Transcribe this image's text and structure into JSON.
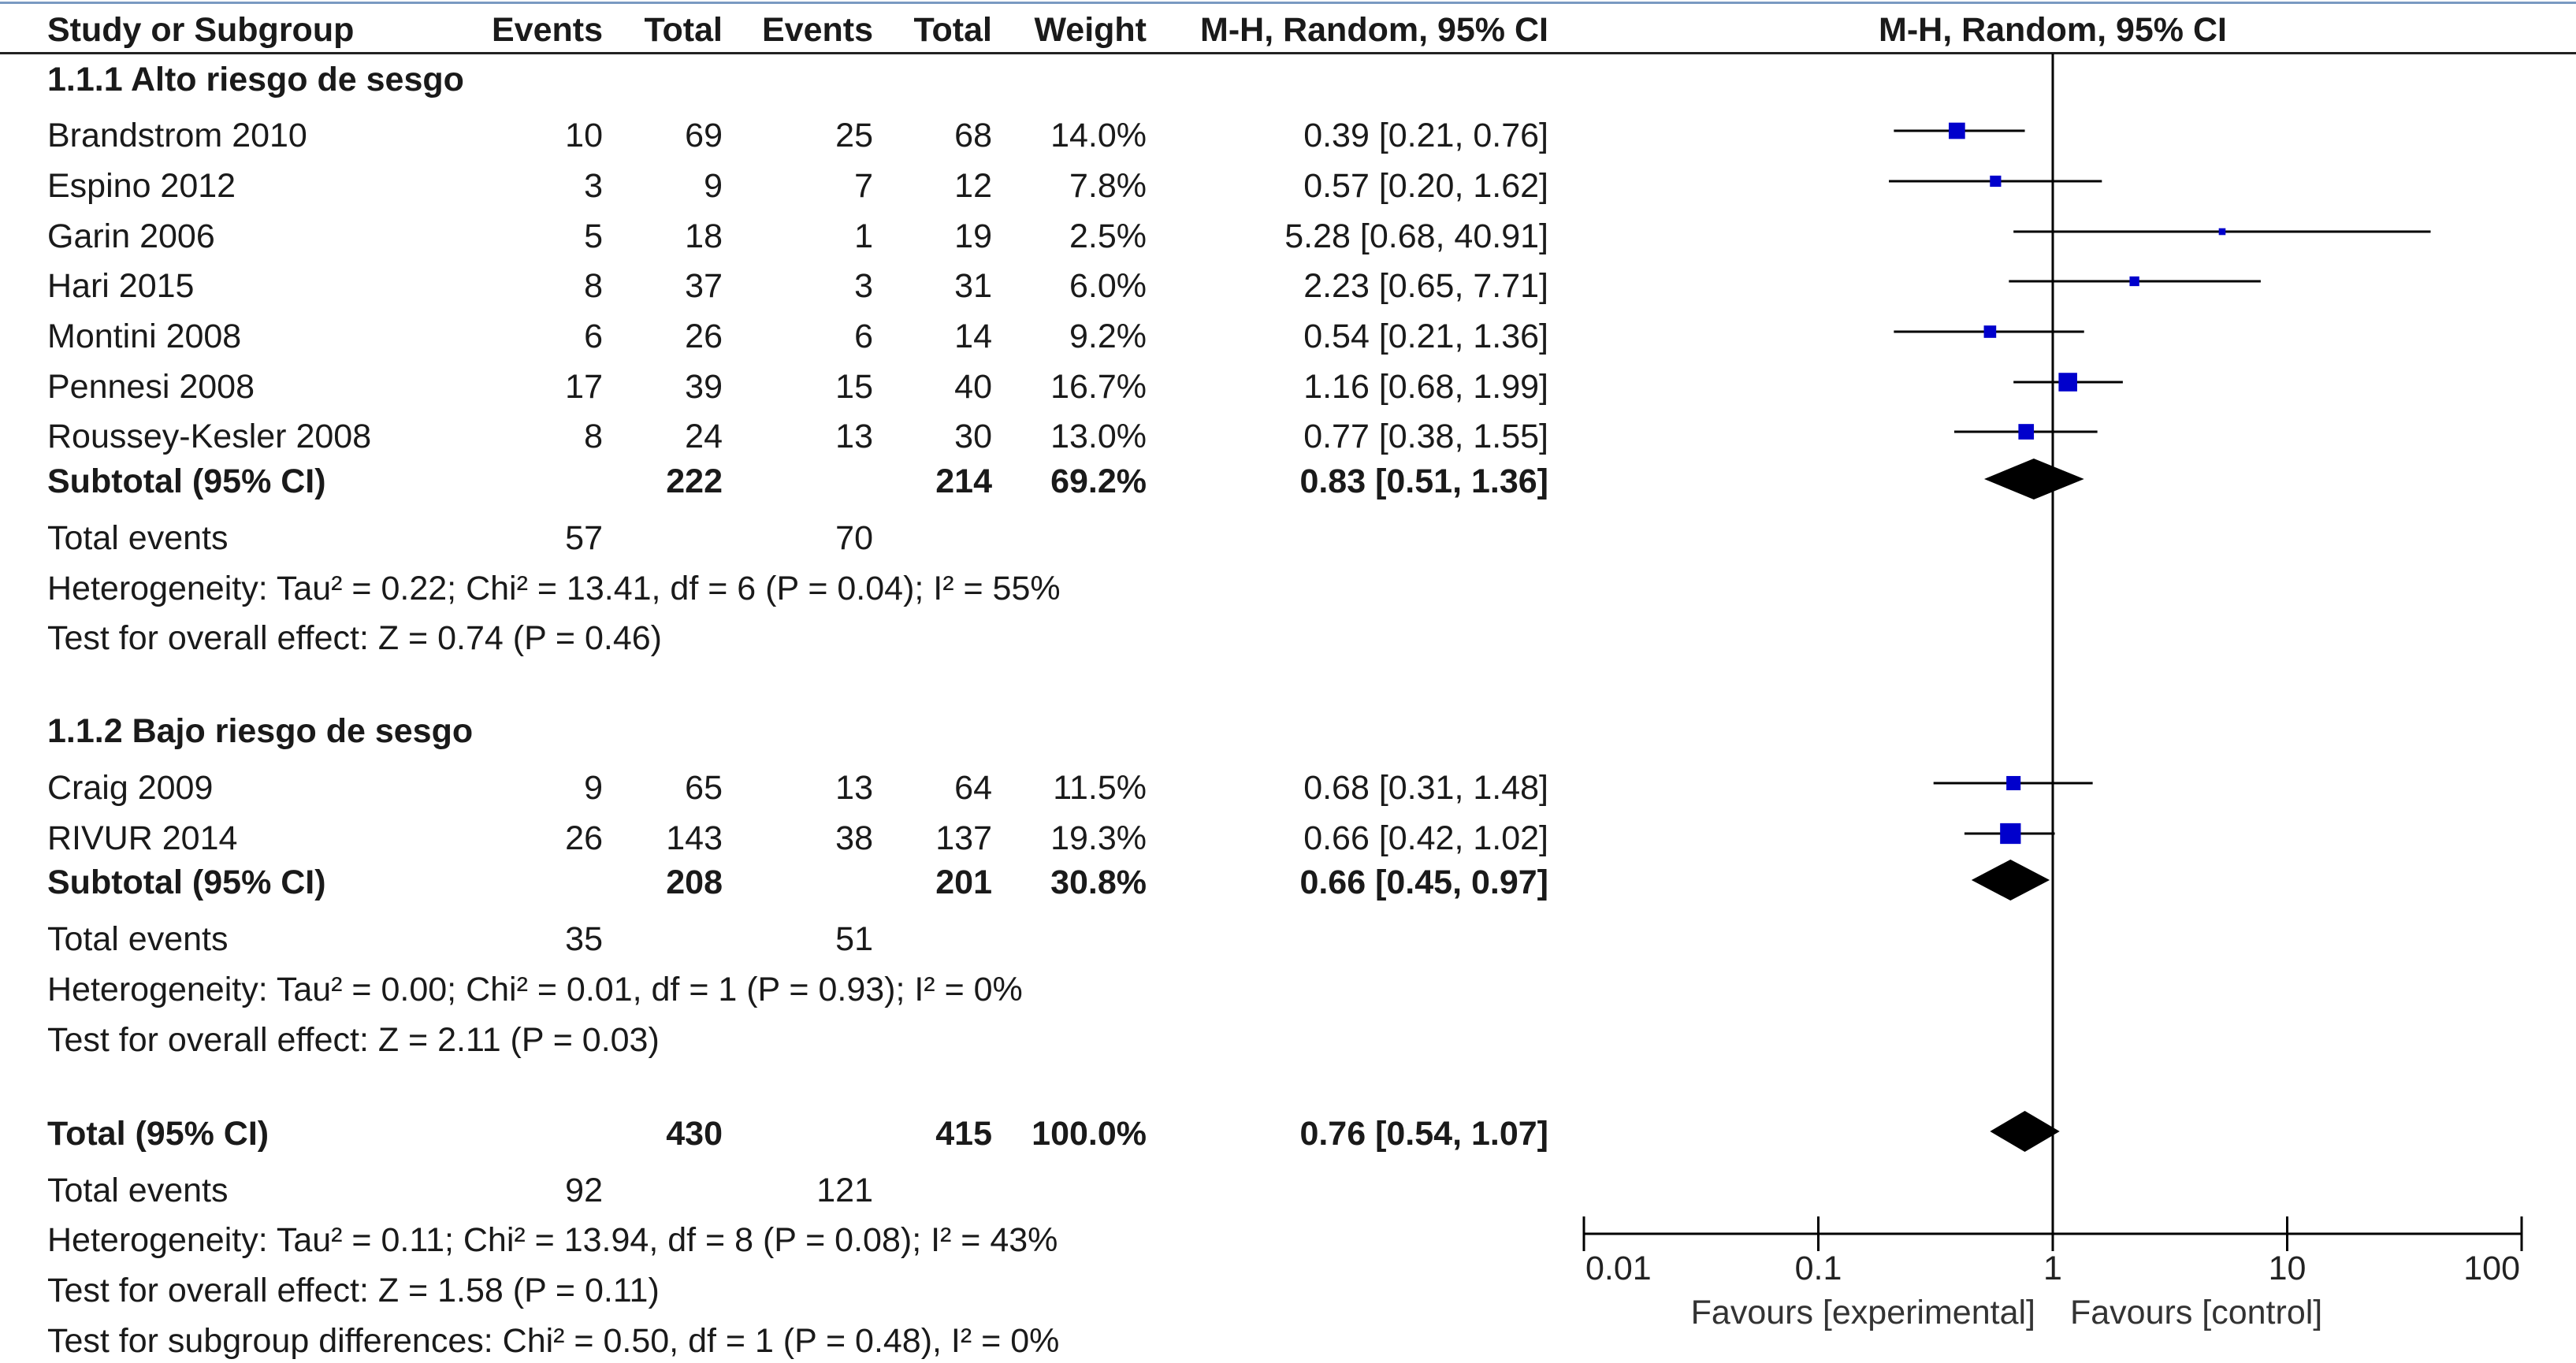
{
  "chart_data": {
    "type": "forest",
    "header": {
      "study": "Study or Subgroup",
      "exp_events": "Events",
      "exp_total": "Total",
      "ctl_events": "Events",
      "ctl_total": "Total",
      "weight": "Weight",
      "effect": "M-H, Random, 95% CI",
      "plot_title": "M-H, Random, 95% CI"
    },
    "groups": [
      {
        "title": "1.1.1 Alto riesgo de sesgo",
        "studies": [
          {
            "name": "Brandstrom 2010",
            "e1": "10",
            "n1": "69",
            "e2": "25",
            "n2": "68",
            "weight": "14.0%",
            "ci_text": "0.39 [0.21, 0.76]",
            "or": 0.39,
            "lo": 0.21,
            "hi": 0.76,
            "w": 14.0
          },
          {
            "name": "Espino 2012",
            "e1": "3",
            "n1": "9",
            "e2": "7",
            "n2": "12",
            "weight": "7.8%",
            "ci_text": "0.57 [0.20, 1.62]",
            "or": 0.57,
            "lo": 0.2,
            "hi": 1.62,
            "w": 7.8
          },
          {
            "name": "Garin 2006",
            "e1": "5",
            "n1": "18",
            "e2": "1",
            "n2": "19",
            "weight": "2.5%",
            "ci_text": "5.28 [0.68, 40.91]",
            "or": 5.28,
            "lo": 0.68,
            "hi": 40.91,
            "w": 2.5
          },
          {
            "name": "Hari 2015",
            "e1": "8",
            "n1": "37",
            "e2": "3",
            "n2": "31",
            "weight": "6.0%",
            "ci_text": "2.23 [0.65, 7.71]",
            "or": 2.23,
            "lo": 0.65,
            "hi": 7.71,
            "w": 6.0
          },
          {
            "name": "Montini 2008",
            "e1": "6",
            "n1": "26",
            "e2": "6",
            "n2": "14",
            "weight": "9.2%",
            "ci_text": "0.54 [0.21, 1.36]",
            "or": 0.54,
            "lo": 0.21,
            "hi": 1.36,
            "w": 9.2
          },
          {
            "name": "Pennesi 2008",
            "e1": "17",
            "n1": "39",
            "e2": "15",
            "n2": "40",
            "weight": "16.7%",
            "ci_text": "1.16 [0.68, 1.99]",
            "or": 1.16,
            "lo": 0.68,
            "hi": 1.99,
            "w": 16.7
          },
          {
            "name": "Roussey-Kesler 2008",
            "e1": "8",
            "n1": "24",
            "e2": "13",
            "n2": "30",
            "weight": "13.0%",
            "ci_text": "0.77 [0.38, 1.55]",
            "or": 0.77,
            "lo": 0.38,
            "hi": 1.55,
            "w": 13.0
          }
        ],
        "subtotal": {
          "label": "Subtotal (95% CI)",
          "n1": "222",
          "n2": "214",
          "weight": "69.2%",
          "ci_text": "0.83 [0.51, 1.36]",
          "or": 0.83,
          "lo": 0.51,
          "hi": 1.36
        },
        "total_events": {
          "label": "Total events",
          "e1": "57",
          "e2": "70"
        },
        "heterogeneity": "Heterogeneity: Tau² = 0.22; Chi² = 13.41, df = 6 (P = 0.04); I² = 55%",
        "overall": "Test for overall effect: Z = 0.74 (P = 0.46)"
      },
      {
        "title": "1.1.2 Bajo riesgo de sesgo",
        "studies": [
          {
            "name": "Craig 2009",
            "e1": "9",
            "n1": "65",
            "e2": "13",
            "n2": "64",
            "weight": "11.5%",
            "ci_text": "0.68 [0.31, 1.48]",
            "or": 0.68,
            "lo": 0.31,
            "hi": 1.48,
            "w": 11.5
          },
          {
            "name": "RIVUR 2014",
            "e1": "26",
            "n1": "143",
            "e2": "38",
            "n2": "137",
            "weight": "19.3%",
            "ci_text": "0.66 [0.42, 1.02]",
            "or": 0.66,
            "lo": 0.42,
            "hi": 1.02,
            "w": 19.3
          }
        ],
        "subtotal": {
          "label": "Subtotal (95% CI)",
          "n1": "208",
          "n2": "201",
          "weight": "30.8%",
          "ci_text": "0.66 [0.45, 0.97]",
          "or": 0.66,
          "lo": 0.45,
          "hi": 0.97
        },
        "total_events": {
          "label": "Total events",
          "e1": "35",
          "e2": "51"
        },
        "heterogeneity": "Heterogeneity: Tau² = 0.00; Chi² = 0.01, df = 1 (P = 0.93); I² = 0%",
        "overall": "Test for overall effect: Z = 2.11 (P = 0.03)"
      }
    ],
    "total": {
      "label": "Total (95% CI)",
      "n1": "430",
      "n2": "415",
      "weight": "100.0%",
      "ci_text": "0.76 [0.54, 1.07]",
      "or": 0.76,
      "lo": 0.54,
      "hi": 1.07,
      "total_events": {
        "label": "Total events",
        "e1": "92",
        "e2": "121"
      },
      "heterogeneity": "Heterogeneity: Tau² = 0.11; Chi² = 13.94, df = 8 (P = 0.08); I² = 43%",
      "overall": "Test for overall effect: Z = 1.58 (P = 0.11)",
      "subgroup": "Test for subgroup differences: Chi² = 0.50, df = 1 (P = 0.48), I² = 0%"
    },
    "axis": {
      "scale": "log",
      "xlim": [
        0.01,
        100
      ],
      "ticks": [
        0.01,
        0.1,
        1,
        10,
        100
      ],
      "tick_labels": [
        "0.01",
        "0.1",
        "1",
        "10",
        "100"
      ],
      "favours_left": "Favours [experimental]",
      "favours_right": "Favours [control]"
    },
    "colors": {
      "square": "#0000cc",
      "diamond": "#000000",
      "line": "#000000"
    }
  }
}
